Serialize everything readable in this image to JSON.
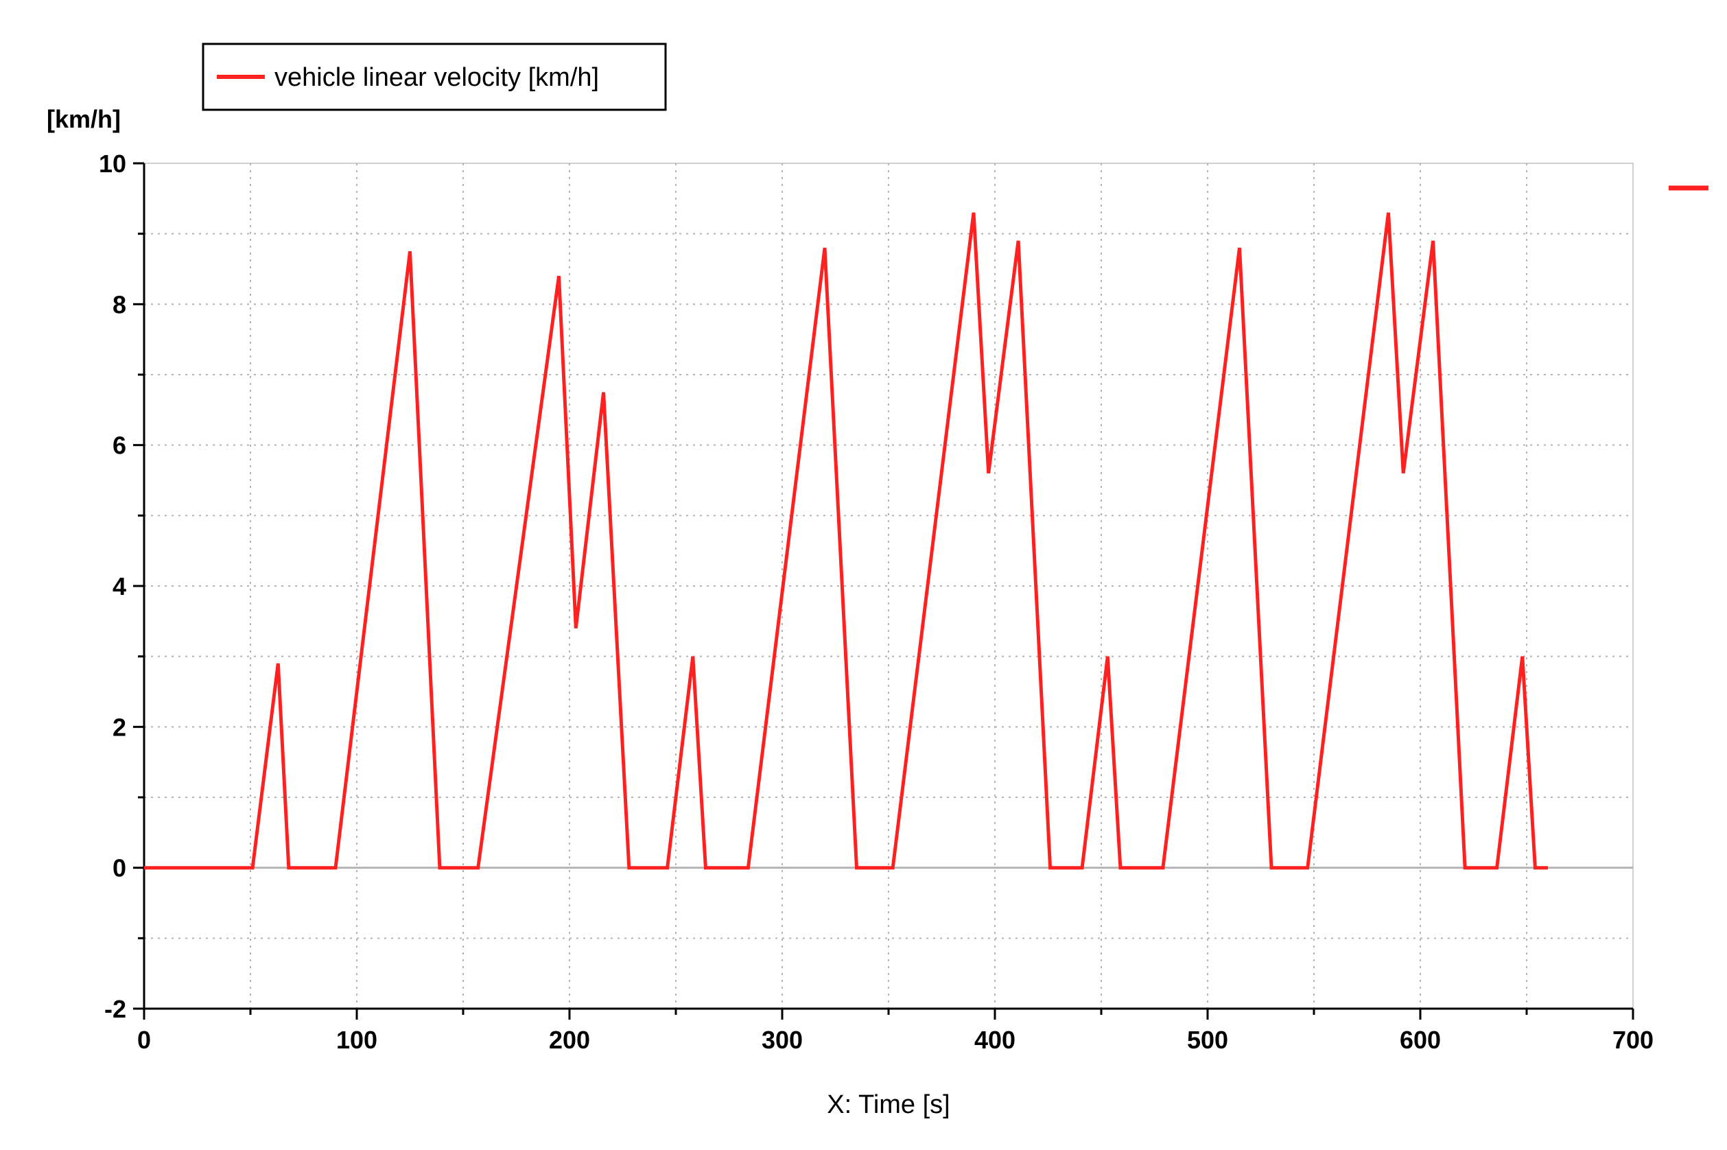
{
  "chart_data": {
    "type": "line",
    "title": "",
    "xlabel": "X: Time [s]",
    "ylabel": "[km/h]",
    "xlim": [
      0,
      700
    ],
    "ylim": [
      -2,
      10
    ],
    "x_ticks": [
      0,
      100,
      200,
      300,
      400,
      500,
      600,
      700
    ],
    "y_ticks": [
      -2,
      0,
      2,
      4,
      6,
      8,
      10
    ],
    "x_minor_step": 50,
    "y_minor_step": 1,
    "grid": true,
    "legend": {
      "position": "top-left",
      "entries": [
        "vehicle linear velocity [km/h]"
      ]
    },
    "colors": {
      "series": "#ff2020",
      "axis": "#000000",
      "grid": "#b4b4b4",
      "zero_line": "#b4b4b4"
    },
    "series": [
      {
        "name": "vehicle linear velocity [km/h]",
        "x": [
          0,
          51,
          63,
          68,
          90,
          125,
          139,
          157,
          195,
          203,
          216,
          228,
          246,
          258,
          264,
          284,
          320,
          335,
          352,
          390,
          397,
          411,
          426,
          441,
          453,
          459,
          479,
          515,
          530,
          547,
          585,
          592,
          606,
          621,
          636,
          648,
          654,
          660
        ],
        "y": [
          0,
          0,
          2.9,
          0,
          0,
          8.75,
          0,
          0,
          8.4,
          3.4,
          6.75,
          0,
          0,
          3.0,
          0,
          0,
          8.8,
          0,
          0,
          9.3,
          5.6,
          8.9,
          0,
          0,
          3.0,
          0,
          0,
          8.8,
          0,
          0,
          9.3,
          5.6,
          8.9,
          0,
          0,
          3.0,
          0,
          0
        ]
      }
    ]
  }
}
